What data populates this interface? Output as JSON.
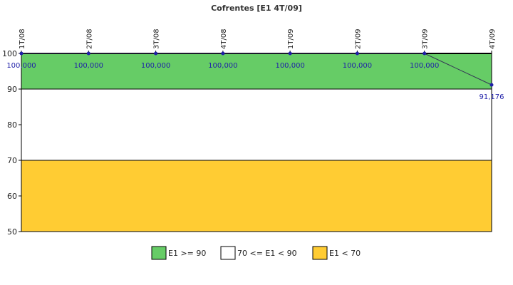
{
  "chart_data": {
    "type": "line",
    "title": "Cofrentes [E1 4T/09]",
    "categories": [
      "1T/08",
      "2T/08",
      "3T/08",
      "4T/08",
      "1T/09",
      "2T/09",
      "3T/09",
      "4T/09"
    ],
    "series": [
      {
        "values": [
          100.0,
          100.0,
          100.0,
          100.0,
          100.0,
          100.0,
          100.0,
          91.176
        ],
        "labels": [
          "100,000",
          "100,000",
          "100,000",
          "100,000",
          "100,000",
          "100,000",
          "100,000",
          "91,176"
        ],
        "color": "#1f1fa8"
      }
    ],
    "ylim": [
      50,
      100
    ],
    "yticks": [
      "50",
      "60",
      "70",
      "80",
      "90",
      "100"
    ],
    "ytick_values": [
      50,
      60,
      70,
      80,
      90,
      100
    ],
    "bands": [
      {
        "from": 90,
        "to": 100,
        "color": "#66cc66",
        "label": "E1 >= 90"
      },
      {
        "from": 70,
        "to": 90,
        "color": "#ffffff",
        "label": "70 <= E1 < 90"
      },
      {
        "from": 50,
        "to": 70,
        "color": "#ffcc33",
        "label": "E1 < 70"
      }
    ],
    "legend_position": "bottom-center",
    "grid": false
  }
}
